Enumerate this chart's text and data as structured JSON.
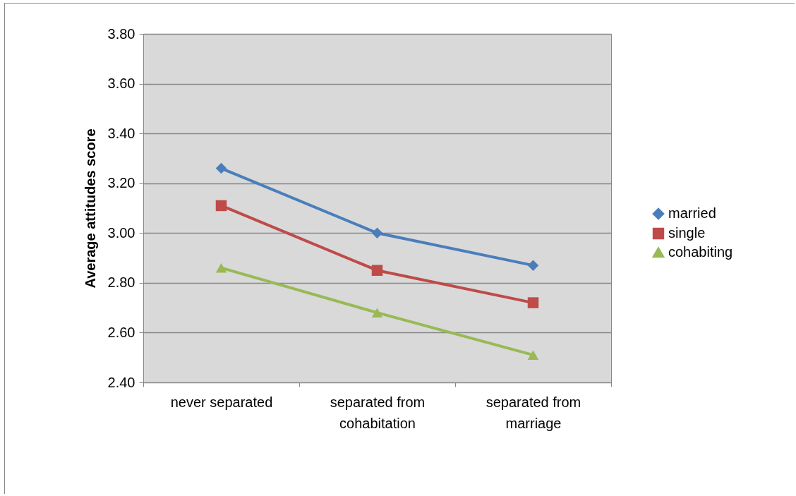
{
  "chart_data": {
    "type": "line",
    "ylabel": "Average attitudes score",
    "categories": [
      "never separated",
      "separated from cohabitation",
      "separated from marriage"
    ],
    "series": [
      {
        "name": "married",
        "color": "#4a7ebb",
        "marker": "diamond",
        "values": [
          3.26,
          3.0,
          2.87
        ]
      },
      {
        "name": "single",
        "color": "#be4b48",
        "marker": "square",
        "values": [
          3.11,
          2.85,
          2.72
        ]
      },
      {
        "name": "cohabiting",
        "color": "#98b954",
        "marker": "triangle",
        "values": [
          2.86,
          2.68,
          2.51
        ]
      }
    ],
    "ylim": [
      2.4,
      3.8
    ],
    "yticks": [
      {
        "value": 2.4,
        "label": "2.40"
      },
      {
        "value": 2.6,
        "label": "2.60"
      },
      {
        "value": 2.8,
        "label": "2.80"
      },
      {
        "value": 3.0,
        "label": "3.00"
      },
      {
        "value": 3.2,
        "label": "3.20"
      },
      {
        "value": 3.4,
        "label": "3.40"
      },
      {
        "value": 3.6,
        "label": "3.60"
      },
      {
        "value": 3.8,
        "label": "3.80"
      }
    ],
    "grid": "y",
    "legend": "right",
    "line_style": "solid"
  }
}
